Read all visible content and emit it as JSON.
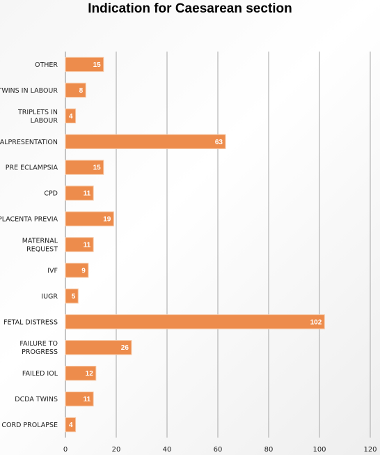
{
  "chart_data": {
    "type": "bar",
    "orientation": "horizontal",
    "title": "Indication for Caesarean section",
    "xlabel": "",
    "ylabel": "",
    "categories": [
      "OTHER",
      "TWINS IN LABOUR",
      "TRIPLETS IN LABOUR",
      "MALPRESENTATION",
      "PRE ECLAMPSIA",
      "CPD",
      "PLACENTA PREVIA",
      "MATERNAL REQUEST",
      "IVF",
      "IUGR",
      "FETAL DISTRESS",
      "FAILURE TO PROGRESS",
      "FAILED IOL",
      "DCDA TWINS",
      "CORD PROLAPSE"
    ],
    "values": [
      15,
      8,
      4,
      63,
      15,
      11,
      19,
      11,
      9,
      5,
      102,
      26,
      12,
      11,
      4
    ],
    "xlim": [
      0,
      120
    ],
    "xticks": [
      0,
      20,
      40,
      60,
      80,
      100,
      120
    ],
    "grid": true,
    "legend": "none",
    "bar_color": "#ed8c4c",
    "bar_edge_color": "#f6c7a5",
    "grid_color": "#a6a6a6"
  }
}
